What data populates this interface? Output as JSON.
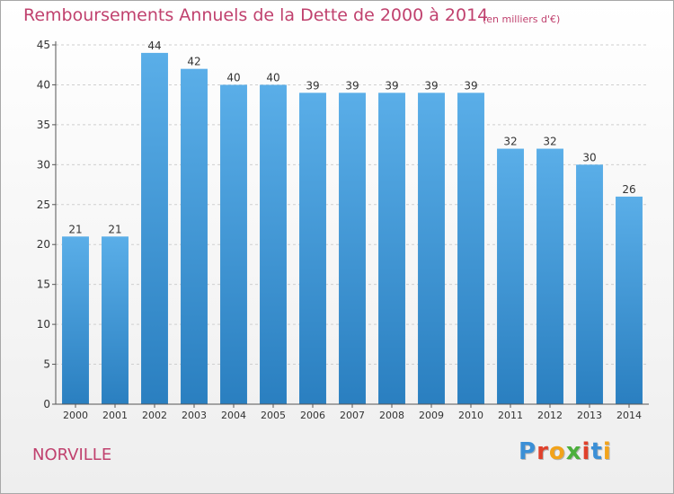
{
  "page": {
    "title": "Remboursements Annuels de la Dette de 2000 à 2014",
    "subtitle": "(en milliers d'€)",
    "town": "NORVILLE",
    "logo": {
      "letters": [
        {
          "char": "P",
          "color": "#3b8fd6"
        },
        {
          "char": "r",
          "color": "#e0412c"
        },
        {
          "char": "o",
          "color": "#f2a31b"
        },
        {
          "char": "x",
          "color": "#4caf3c"
        },
        {
          "char": "i",
          "color": "#e0412c"
        },
        {
          "char": "t",
          "color": "#3b8fd6"
        },
        {
          "char": "i",
          "color": "#f2a31b"
        }
      ]
    }
  },
  "colors": {
    "bar_top": "#5aaee8",
    "bar_bottom": "#2a7fc0",
    "axis": "#555555",
    "grid": "#cfcfcf",
    "text": "#333333"
  },
  "chart_data": {
    "type": "bar",
    "title": "Remboursements Annuels de la Dette de 2000 à 2014",
    "xlabel": "",
    "ylabel": "",
    "ylim": [
      0,
      45
    ],
    "yticks": [
      0,
      5,
      10,
      15,
      20,
      25,
      30,
      35,
      40,
      45
    ],
    "grid": true,
    "categories": [
      "2000",
      "2001",
      "2002",
      "2003",
      "2004",
      "2005",
      "2006",
      "2007",
      "2008",
      "2009",
      "2010",
      "2011",
      "2012",
      "2013",
      "2014"
    ],
    "values": [
      21,
      21,
      44,
      42,
      40,
      40,
      39,
      39,
      39,
      39,
      39,
      32,
      32,
      30,
      26
    ]
  }
}
